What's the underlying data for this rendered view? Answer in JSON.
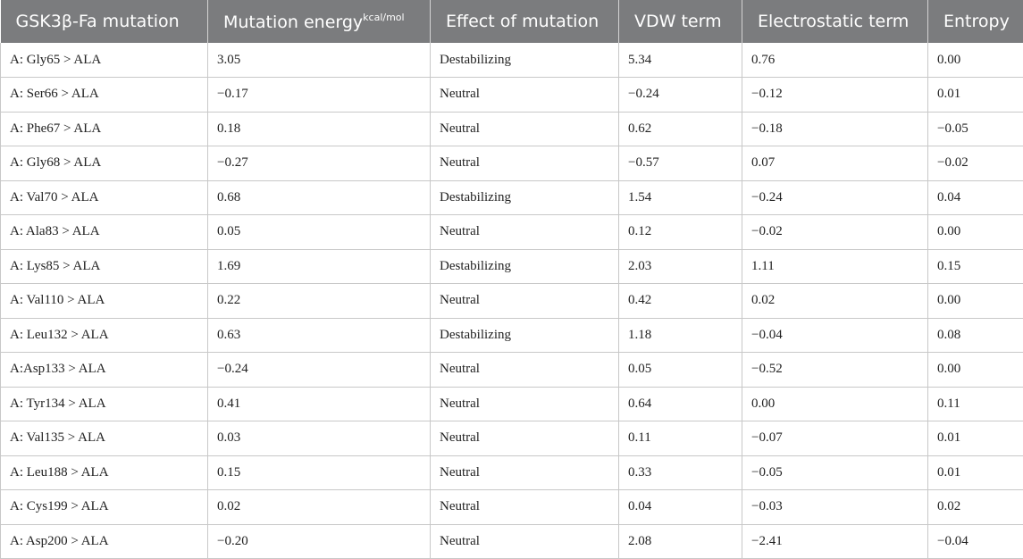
{
  "table": {
    "headers": [
      "GSK3β-Fa mutation",
      "Mutation energy",
      "Effect of mutation",
      "VDW term",
      "Electrostatic term",
      "Entropy"
    ],
    "energy_unit": "kcal/mol",
    "rows": [
      [
        "A: Gly65 > ALA",
        "3.05",
        "Destabilizing",
        "5.34",
        "0.76",
        "0.00"
      ],
      [
        "A: Ser66 > ALA",
        "−0.17",
        "Neutral",
        "−0.24",
        "−0.12",
        "0.01"
      ],
      [
        "A: Phe67 > ALA",
        "0.18",
        "Neutral",
        "0.62",
        "−0.18",
        "−0.05"
      ],
      [
        "A: Gly68 > ALA",
        "−0.27",
        "Neutral",
        "−0.57",
        "0.07",
        "−0.02"
      ],
      [
        "A: Val70 > ALA",
        "0.68",
        "Destabilizing",
        "1.54",
        "−0.24",
        "0.04"
      ],
      [
        "A: Ala83 > ALA",
        "0.05",
        "Neutral",
        "0.12",
        "−0.02",
        "0.00"
      ],
      [
        "A: Lys85 > ALA",
        "1.69",
        "Destabilizing",
        "2.03",
        "1.11",
        "0.15"
      ],
      [
        "A: Val110 > ALA",
        "0.22",
        "Neutral",
        "0.42",
        "0.02",
        "0.00"
      ],
      [
        "A: Leu132 > ALA",
        "0.63",
        "Destabilizing",
        "1.18",
        "−0.04",
        "0.08"
      ],
      [
        "A:Asp133 > ALA",
        "−0.24",
        "Neutral",
        "0.05",
        "−0.52",
        "0.00"
      ],
      [
        "A: Tyr134 > ALA",
        "0.41",
        "Neutral",
        "0.64",
        "0.00",
        "0.11"
      ],
      [
        "A: Val135 > ALA",
        "0.03",
        "Neutral",
        "0.11",
        "−0.07",
        "0.01"
      ],
      [
        "A: Leu188 > ALA",
        "0.15",
        "Neutral",
        "0.33",
        "−0.05",
        "0.01"
      ],
      [
        "A: Cys199 > ALA",
        "0.02",
        "Neutral",
        "0.04",
        "−0.03",
        "0.02"
      ],
      [
        "A: Asp200 > ALA",
        "−0.20",
        "Neutral",
        "2.08",
        "−2.41",
        "−0.04"
      ]
    ]
  },
  "colors": {
    "header_background": "#7b7c7e",
    "header_text": "#ffffff",
    "grid_line": "#c8c8c8"
  }
}
